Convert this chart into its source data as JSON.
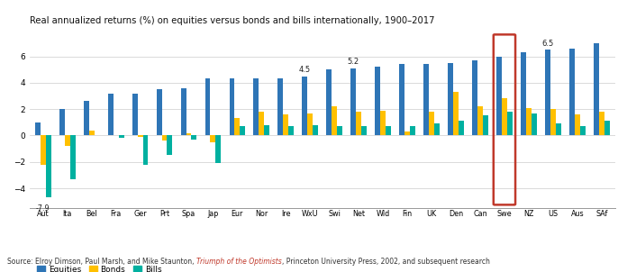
{
  "title": "Real annualized returns (%) on equities versus bonds and bills internationally, 1900–2017",
  "categories": [
    "Aut",
    "Ita",
    "Bel",
    "Fra",
    "Ger",
    "Prt",
    "Spa",
    "Jap",
    "Eur",
    "Nor",
    "Ire",
    "WxU",
    "Swi",
    "Net",
    "Wld",
    "Fin",
    "UK",
    "Den",
    "Can",
    "Swe",
    "NZ",
    "US",
    "Aus",
    "SAf"
  ],
  "equities": [
    1.0,
    2.0,
    2.6,
    3.2,
    3.2,
    3.5,
    3.6,
    4.3,
    4.3,
    4.3,
    4.3,
    4.5,
    5.0,
    5.1,
    5.2,
    5.4,
    5.4,
    5.5,
    5.7,
    6.0,
    6.3,
    6.5,
    6.6,
    7.0
  ],
  "bonds": [
    -2.2,
    -0.8,
    0.4,
    0.0,
    -0.1,
    -0.4,
    0.2,
    -0.5,
    1.3,
    1.8,
    1.6,
    1.7,
    2.2,
    1.8,
    1.9,
    0.3,
    1.8,
    3.3,
    2.2,
    2.8,
    2.1,
    2.0,
    1.6,
    1.8
  ],
  "bills": [
    -4.7,
    -3.3,
    0.0,
    -0.2,
    -2.2,
    -1.5,
    -0.3,
    -2.1,
    0.7,
    0.8,
    0.7,
    0.8,
    0.7,
    0.7,
    0.7,
    0.7,
    0.9,
    1.1,
    1.5,
    1.8,
    1.7,
    0.9,
    0.7,
    1.1
  ],
  "equities_color": "#2E75B6",
  "bonds_color": "#FFC000",
  "bills_color": "#00B0A0",
  "highlight_index": 19,
  "highlight_color": "#C0392B",
  "ylim": [
    -5.5,
    8.0
  ],
  "yticks": [
    -4,
    -2,
    0,
    2,
    4,
    6
  ],
  "source_plain": "Source: Elroy Dimson, Paul Marsh, and Mike Staunton, ",
  "source_link": "Triumph of the Optimists",
  "source_rest": ", Princeton University Press, 2002, and subsequent research",
  "source_link_color": "#C0392B",
  "background_color": "#FFFFFF",
  "grid_color": "#CCCCCC"
}
